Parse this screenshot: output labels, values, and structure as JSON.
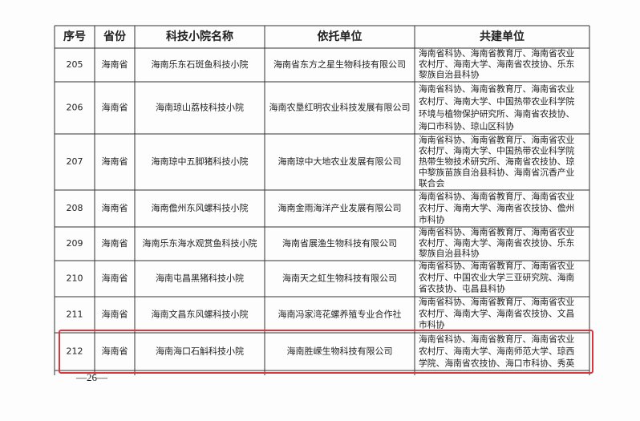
{
  "table": {
    "header": [
      "序号",
      "省份",
      "科技小院名称",
      "依托单位",
      "共建单位"
    ],
    "rows": [
      [
        "205",
        "海南省",
        "海南乐东石斑鱼科技小院",
        "海南省东方之星生物科技有限公司",
        [
          "海南省科协、海南省教育厅、海南省农业",
          "农村厅、海南大学、海南省农技协、乐东",
          "黎族自治县科协"
        ]
      ],
      [
        "206",
        "海南省",
        "海南琼山荔枝科技小院",
        "海南农垦红明农业科技发展有限公司",
        [
          "海南省科协、海南省教育厅、海南省农业",
          "农村厅、海南大学、中国热带农业科学院",
          "环境与植物保护研究所、海南省农技协、",
          "海口市科协、琼山区科协"
        ]
      ],
      [
        "207",
        "海南省",
        "海南琼中五脚猪科技小院",
        "海南琼中大地农业发展有限公司",
        [
          "海南省科协、海南省教育厅、海南省农业",
          "农村厅、海南大学、中国热带农业科学院",
          "热带生物技术研究所、海南省农技协、琼",
          "中黎族苗族自治县科协、海南省沉香产业",
          "联合会"
        ]
      ],
      [
        "208",
        "海南省",
        "海南儋州东风螺科技小院",
        "海南金雨海洋产业发展有限公司",
        [
          "海南省科协、海南省教育厅、海南省农业",
          "农村厅、海南大学、海南省农技协、儋州",
          "市科协"
        ]
      ],
      [
        "209",
        "海南省",
        "海南乐东海水观赏鱼科技小院",
        "海南省展渔生物科技有限公司",
        [
          "海南省科协、海南省教育厅、海南省农业",
          "农村厅、海南大学、海南省农技协、乐东",
          "黎族自治县科协"
        ]
      ],
      [
        "210",
        "海南省",
        "海南屯昌黑猪科技小院",
        "海南天之虹生物科技有限公司",
        [
          "海南省科协、海南省教育厅、海南省农业",
          "农村厅、中国农业大学三亚研究院、海南",
          "省农技协、屯昌县科协"
        ]
      ],
      [
        "211",
        "海南省",
        "海南文昌东风螺科技小院",
        "海南冯家湾花螺养殖专业合作社",
        [
          "海南省科协、海南省教育厅、海南省农业",
          "农村厅、海南大学、海南省农技协、文昌",
          "市科协"
        ]
      ],
      [
        "212",
        "海南省",
        "海南海口石斛科技小院",
        "海南胜嵘生物科技有限公司",
        [
          "海南省科协、海南省教育厅、海南省农业",
          "农村厅、海南大学、海南师范大学、琼西",
          "学院、海南省农技协、海口市科协、秀英"
        ]
      ]
    ]
  },
  "page_number": "—26—"
}
